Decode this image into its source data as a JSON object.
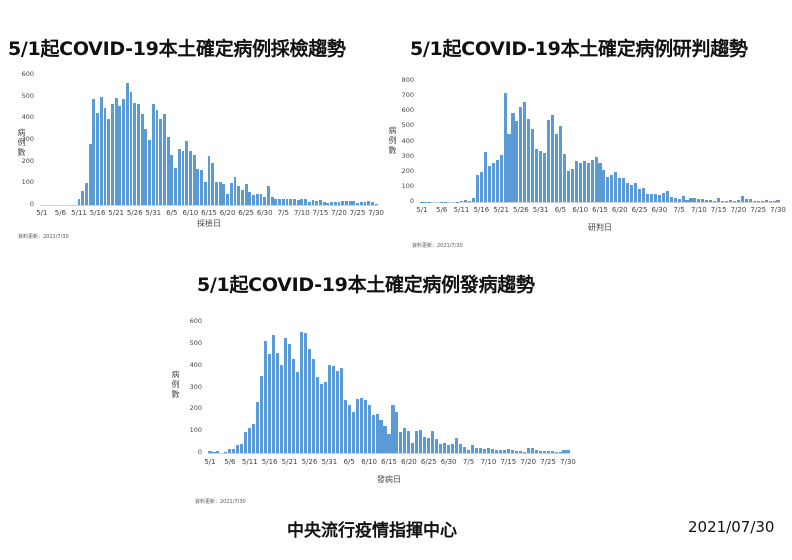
{
  "titles": {
    "chart1": "5/1起COVID-19本土確定病例採檢趨勢",
    "chart2": "5/1起COVID-19本土確定病例研判趨勢",
    "chart3": "5/1起COVID-19本土確定病例發病趨勢"
  },
  "footer": {
    "organization": "中央流行疫情指揮中心",
    "date": "2021/07/30"
  },
  "colors": {
    "bar": "#5b9bd5",
    "axis": "#d0d0d0"
  },
  "chart_data": [
    {
      "type": "bar",
      "title": "5/1起COVID-19本土確定病例採檢趨勢",
      "xlabel": "採檢日",
      "ylabel": "病例數",
      "ylim": [
        0,
        600
      ],
      "yticks": [
        "600",
        "500",
        "400",
        "300",
        "200",
        "100",
        "0"
      ],
      "xticks": [
        "5/1",
        "5/6",
        "5/11",
        "5/16",
        "5/21",
        "5/26",
        "5/31",
        "6/5",
        "6/10",
        "6/15",
        "6/20",
        "6/25",
        "6/30",
        "7/5",
        "7/10",
        "7/15",
        "7/20",
        "7/25",
        "7/30"
      ],
      "grid": false,
      "legend": "none",
      "note": "資料更新：2021/7/30",
      "start_date": "5/1",
      "values": [
        0,
        0,
        0,
        0,
        0,
        0,
        0,
        0,
        0,
        0,
        27,
        65,
        100,
        280,
        487,
        423,
        497,
        447,
        397,
        467,
        493,
        458,
        487,
        563,
        522,
        472,
        467,
        420,
        350,
        302,
        468,
        438,
        397,
        418,
        315,
        230,
        172,
        260,
        248,
        295,
        248,
        230,
        168,
        163,
        105,
        228,
        195,
        106,
        106,
        98,
        50,
        102,
        127,
        88,
        68,
        95,
        62,
        48,
        52,
        50,
        38,
        90,
        35,
        30,
        28,
        28,
        30,
        30,
        28,
        25,
        26,
        28,
        15,
        25,
        20,
        22,
        15,
        8,
        15,
        12,
        15,
        20,
        18,
        20,
        18,
        8,
        12,
        15,
        18,
        15,
        3
      ]
    },
    {
      "type": "bar",
      "title": "5/1起COVID-19本土確定病例研判趨勢",
      "xlabel": "研判日",
      "ylabel": "病例數",
      "ylim": [
        0,
        800
      ],
      "yticks": [
        "800",
        "700",
        "600",
        "500",
        "400",
        "300",
        "200",
        "100",
        "0"
      ],
      "xticks": [
        "5/1",
        "5/6",
        "5/11",
        "5/16",
        "5/21",
        "5/26",
        "5/31",
        "6/5",
        "6/10",
        "6/15",
        "6/20",
        "6/25",
        "6/30",
        "7/5",
        "7/10",
        "7/15",
        "7/20",
        "7/25",
        "7/30"
      ],
      "grid": false,
      "legend": "none",
      "note": "資料更新：2021/7/30",
      "start_date": "5/1",
      "values": [
        3,
        3,
        3,
        0,
        0,
        3,
        3,
        0,
        0,
        3,
        5,
        12,
        10,
        25,
        178,
        200,
        330,
        237,
        260,
        280,
        310,
        718,
        450,
        590,
        538,
        630,
        660,
        550,
        480,
        350,
        340,
        322,
        545,
        575,
        450,
        500,
        318,
        202,
        215,
        268,
        257,
        270,
        258,
        275,
        300,
        260,
        213,
        168,
        178,
        200,
        160,
        160,
        128,
        110,
        128,
        88,
        90,
        50,
        52,
        52,
        48,
        58,
        70,
        30,
        25,
        20,
        40,
        12,
        25,
        25,
        22,
        20,
        12,
        12,
        5,
        25,
        5,
        10,
        12,
        10,
        15,
        40,
        20,
        18,
        8,
        5,
        10,
        12,
        10,
        10,
        15
      ]
    },
    {
      "type": "bar",
      "title": "5/1起COVID-19本土確定病例發病趨勢",
      "xlabel": "發病日",
      "ylabel": "病例數",
      "ylim": [
        0,
        600
      ],
      "yticks": [
        "600",
        "500",
        "400",
        "300",
        "200",
        "100",
        "0"
      ],
      "xticks": [
        "5/1",
        "5/6",
        "5/11",
        "5/16",
        "5/21",
        "5/26",
        "5/31",
        "6/5",
        "6/10",
        "6/15",
        "6/20",
        "6/25",
        "6/30",
        "7/5",
        "7/10",
        "7/15",
        "7/20",
        "7/25",
        "7/30"
      ],
      "grid": false,
      "legend": "none",
      "note": "資料更新：2021/7/30",
      "start_date": "5/1",
      "values": [
        10,
        5,
        8,
        0,
        5,
        18,
        20,
        35,
        40,
        95,
        115,
        132,
        235,
        355,
        515,
        455,
        540,
        460,
        405,
        525,
        500,
        430,
        372,
        555,
        550,
        478,
        430,
        350,
        318,
        325,
        402,
        400,
        375,
        390,
        245,
        222,
        188,
        248,
        250,
        245,
        218,
        172,
        178,
        150,
        125,
        85,
        220,
        190,
        95,
        115,
        100,
        45,
        100,
        105,
        75,
        68,
        100,
        65,
        40,
        45,
        35,
        40,
        70,
        40,
        28,
        15,
        35,
        22,
        22,
        20,
        22,
        18,
        12,
        15,
        12,
        20,
        15,
        10,
        8,
        5,
        22,
        22,
        15,
        10,
        10,
        8,
        8,
        5,
        5,
        12,
        15
      ]
    }
  ]
}
